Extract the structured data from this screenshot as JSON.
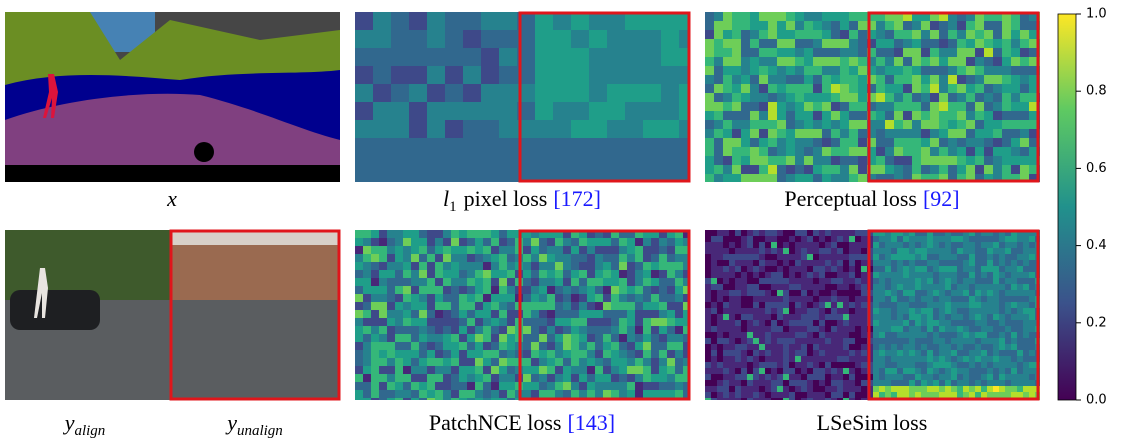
{
  "row1": {
    "segmentation_caption": "x",
    "l1_caption": {
      "symbol": "l",
      "sub": "1",
      "text": "pixel loss",
      "cite": "[172]"
    },
    "perceptual_caption": {
      "text": "Perceptual loss",
      "cite": "[92]"
    }
  },
  "row2": {
    "align_caption": {
      "symbol": "y",
      "sub": "align"
    },
    "unalign_caption": {
      "symbol": "y",
      "sub": "unalign"
    },
    "patchnce_caption": {
      "text": "PatchNCE loss",
      "cite": "[143]"
    },
    "lsesim_caption": {
      "text": "LSeSim loss"
    }
  },
  "colorbar": {
    "lim": [
      0,
      1
    ],
    "ticks": [
      {
        "value": 0,
        "label": "0.0"
      },
      {
        "value": 0.2,
        "label": "0.2"
      },
      {
        "value": 0.4,
        "label": "0.4"
      },
      {
        "value": 0.6,
        "label": "0.6"
      },
      {
        "value": 0.8,
        "label": "0.8"
      },
      {
        "value": 1,
        "label": "1.0"
      }
    ]
  }
}
